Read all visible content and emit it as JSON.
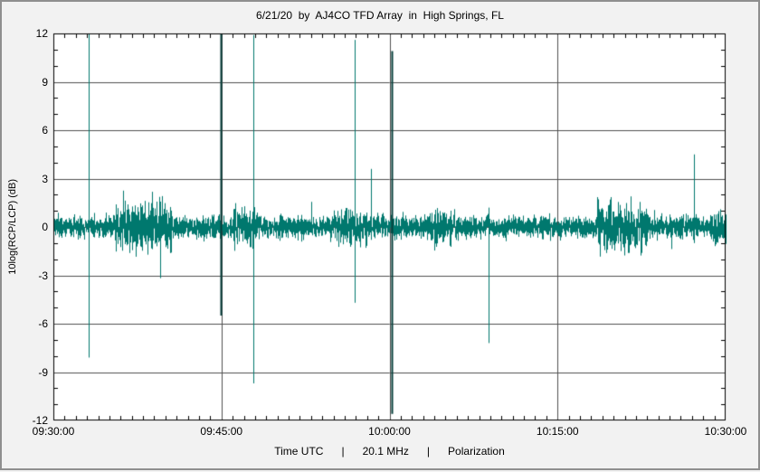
{
  "colors": {
    "background": "#f2f2f2",
    "plot_background": "#ffffff",
    "grid": "#4f4f4f",
    "axis": "#000000",
    "signal": "#00786e",
    "signal_bold": "#073f3b",
    "text": "#000000"
  },
  "chart_data": {
    "type": "line",
    "title": "6/21/20  by  AJ4CO TFD Array  in  High Springs, FL",
    "ylabel": "10log(RCP/LCP) (dB)",
    "xlabel": "Time UTC      |      20.1 MHz      |      Polarization",
    "x_start": "09:30:00",
    "x_end": "10:30:00",
    "x_major_ticks": [
      "09:30:00",
      "09:45:00",
      "10:00:00",
      "10:15:00",
      "10:30:00"
    ],
    "x_minor_tick_minutes": 1,
    "ylim": [
      -12,
      12
    ],
    "y_major_ticks": [
      12,
      9,
      6,
      3,
      0,
      -3,
      -6,
      -9,
      -12
    ],
    "y_minor_tick_db": 1,
    "grid": true,
    "legend": "none",
    "baseline_noise": {
      "mean_db": 0,
      "sigma_db": 0.33,
      "typical_band_db": [
        -1.0,
        0.9
      ]
    },
    "noise_bursts": [
      {
        "start": "09:35:30",
        "end": "09:40:30",
        "peak_db": 2.9
      },
      {
        "start": "09:46:00",
        "end": "09:48:00",
        "peak_db": 2.4
      },
      {
        "start": "09:55:00",
        "end": "09:58:00",
        "peak_db": 2.0
      },
      {
        "start": "10:03:30",
        "end": "10:06:00",
        "peak_db": 2.0
      },
      {
        "start": "10:18:30",
        "end": "10:23:00",
        "peak_db": 2.7
      },
      {
        "start": "10:28:30",
        "end": "10:30:00",
        "peak_db": 1.8
      }
    ],
    "spikes": [
      {
        "time": "09:33:10",
        "min_db": -8.1,
        "max_db": 12.0,
        "bold": false
      },
      {
        "time": "09:44:55",
        "min_db": -5.5,
        "max_db": 12.0,
        "bold": true
      },
      {
        "time": "09:47:50",
        "min_db": -9.7,
        "max_db": 11.9,
        "bold": false
      },
      {
        "time": "09:56:55",
        "min_db": -4.7,
        "max_db": 11.6,
        "bold": false
      },
      {
        "time": "09:58:20",
        "min_db": -0.8,
        "max_db": 3.6,
        "bold": false
      },
      {
        "time": "10:00:10",
        "min_db": -11.6,
        "max_db": 10.9,
        "bold": true
      },
      {
        "time": "10:08:50",
        "min_db": -7.2,
        "max_db": 1.2,
        "bold": false
      },
      {
        "time": "10:27:10",
        "min_db": -1.0,
        "max_db": 4.5,
        "bold": false
      }
    ]
  }
}
